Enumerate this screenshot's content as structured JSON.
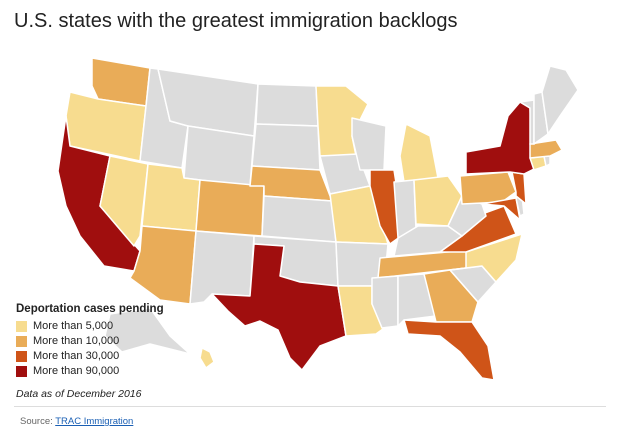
{
  "title": "U.S. states with the greatest immigration backlogs",
  "legend": {
    "title": "Deportation cases pending",
    "items": [
      {
        "label": "More than 5,000",
        "color": "#f7dc8f"
      },
      {
        "label": "More than 10,000",
        "color": "#e9ac58"
      },
      {
        "label": "More than 30,000",
        "color": "#cf5418"
      },
      {
        "label": "More than 90,000",
        "color": "#a00e0e"
      }
    ]
  },
  "no_data_color": "#dcdcdc",
  "note": "Data as of December 2016",
  "source": {
    "prefix": "Source: ",
    "link_text": "TRAC Immigration"
  },
  "states": {
    "CA": 4,
    "TX": 4,
    "NY": 4,
    "IL": 3,
    "VA": 3,
    "MD": 3,
    "NJ": 3,
    "FL": 3,
    "AZ": 2,
    "CO": 2,
    "NE": 2,
    "TN": 2,
    "GA": 2,
    "WA": 2,
    "MA": 2,
    "PA": 2,
    "OR": 1,
    "NV": 1,
    "UT": 1,
    "MN": 1,
    "MO": 1,
    "LA": 1,
    "MI": 1,
    "OH": 1,
    "NC": 1,
    "HI": 1,
    "CT": 1,
    "ID": 0,
    "MT": 0,
    "WY": 0,
    "ND": 0,
    "SD": 0,
    "KS": 0,
    "OK": 0,
    "NM": 0,
    "IA": 0,
    "WI": 0,
    "IN": 0,
    "KY": 0,
    "WV": 0,
    "AR": 0,
    "MS": 0,
    "AL": 0,
    "SC": 0,
    "ME": 0,
    "VT": 0,
    "NH": 0,
    "AK": 0,
    "RI": 0,
    "DE": 0
  }
}
